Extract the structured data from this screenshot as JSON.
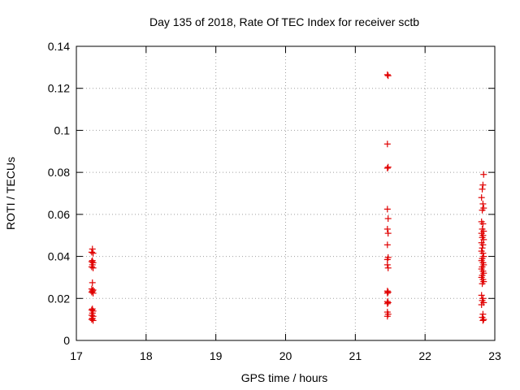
{
  "chart_data": {
    "type": "scatter",
    "title": "Day 135 of 2018, Rate Of TEC Index for receiver sctb",
    "xlabel": "GPS time / hours",
    "ylabel": "ROTI / TECUs",
    "xlim": [
      17,
      23
    ],
    "ylim": [
      0,
      0.14
    ],
    "x_ticks": [
      "17",
      "18",
      "19",
      "20",
      "21",
      "22",
      "23"
    ],
    "y_ticks": [
      "0",
      "0.02",
      "0.04",
      "0.06",
      "0.08",
      "0.1",
      "0.12",
      "0.14"
    ],
    "grid": true,
    "marker": "plus",
    "marker_color": "#e00000",
    "points": [
      [
        17.23,
        0.0435
      ],
      [
        17.22,
        0.042
      ],
      [
        17.24,
        0.0415
      ],
      [
        17.23,
        0.038
      ],
      [
        17.22,
        0.0375
      ],
      [
        17.24,
        0.037
      ],
      [
        17.23,
        0.036
      ],
      [
        17.22,
        0.035
      ],
      [
        17.24,
        0.0345
      ],
      [
        17.23,
        0.0275
      ],
      [
        17.22,
        0.0245
      ],
      [
        17.24,
        0.024
      ],
      [
        17.23,
        0.0235
      ],
      [
        17.22,
        0.023
      ],
      [
        17.24,
        0.0225
      ],
      [
        17.23,
        0.015
      ],
      [
        17.22,
        0.0145
      ],
      [
        17.24,
        0.014
      ],
      [
        17.23,
        0.013
      ],
      [
        17.22,
        0.012
      ],
      [
        17.24,
        0.0115
      ],
      [
        17.23,
        0.0105
      ],
      [
        17.22,
        0.01
      ],
      [
        17.24,
        0.0095
      ],
      [
        21.46,
        0.1265
      ],
      [
        21.47,
        0.126
      ],
      [
        21.46,
        0.0935
      ],
      [
        21.47,
        0.0825
      ],
      [
        21.46,
        0.082
      ],
      [
        21.46,
        0.0625
      ],
      [
        21.47,
        0.058
      ],
      [
        21.46,
        0.053
      ],
      [
        21.47,
        0.051
      ],
      [
        21.46,
        0.0455
      ],
      [
        21.47,
        0.0395
      ],
      [
        21.46,
        0.0385
      ],
      [
        21.46,
        0.036
      ],
      [
        21.47,
        0.0345
      ],
      [
        21.46,
        0.0235
      ],
      [
        21.47,
        0.023
      ],
      [
        21.46,
        0.0225
      ],
      [
        21.46,
        0.0185
      ],
      [
        21.47,
        0.018
      ],
      [
        21.46,
        0.0175
      ],
      [
        21.46,
        0.0135
      ],
      [
        21.47,
        0.0125
      ],
      [
        21.46,
        0.0115
      ],
      [
        22.84,
        0.079
      ],
      [
        22.83,
        0.074
      ],
      [
        22.82,
        0.072
      ],
      [
        22.81,
        0.068
      ],
      [
        22.83,
        0.065
      ],
      [
        22.84,
        0.063
      ],
      [
        22.82,
        0.062
      ],
      [
        22.81,
        0.0565
      ],
      [
        22.83,
        0.0555
      ],
      [
        22.82,
        0.053
      ],
      [
        22.84,
        0.052
      ],
      [
        22.81,
        0.051
      ],
      [
        22.83,
        0.05
      ],
      [
        22.82,
        0.049
      ],
      [
        22.84,
        0.048
      ],
      [
        22.81,
        0.0465
      ],
      [
        22.83,
        0.0455
      ],
      [
        22.82,
        0.044
      ],
      [
        22.81,
        0.0425
      ],
      [
        22.83,
        0.0415
      ],
      [
        22.84,
        0.04
      ],
      [
        22.82,
        0.039
      ],
      [
        22.81,
        0.038
      ],
      [
        22.83,
        0.037
      ],
      [
        22.84,
        0.036
      ],
      [
        22.82,
        0.035
      ],
      [
        22.81,
        0.034
      ],
      [
        22.83,
        0.033
      ],
      [
        22.84,
        0.032
      ],
      [
        22.82,
        0.031
      ],
      [
        22.81,
        0.03
      ],
      [
        22.83,
        0.029
      ],
      [
        22.84,
        0.028
      ],
      [
        22.82,
        0.027
      ],
      [
        22.81,
        0.0215
      ],
      [
        22.83,
        0.02
      ],
      [
        22.82,
        0.019
      ],
      [
        22.84,
        0.018
      ],
      [
        22.81,
        0.017
      ],
      [
        22.83,
        0.0125
      ],
      [
        22.82,
        0.011
      ],
      [
        22.84,
        0.01
      ],
      [
        22.83,
        0.0095
      ]
    ]
  }
}
